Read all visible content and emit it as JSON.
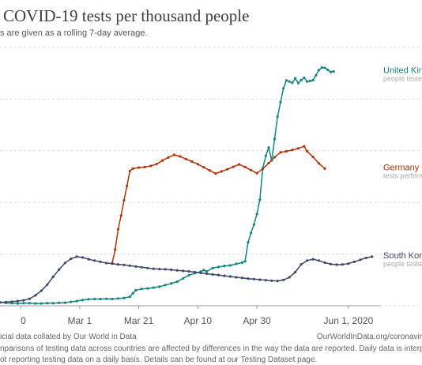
{
  "header": {
    "title": "COVID-19 tests per thousand people",
    "subtitle": "s are given as a rolling 7-day average."
  },
  "footer": {
    "source_left": "icial data collated by Our World in Data",
    "source_right": "OurWorldInData.org/coronavir",
    "note_line1": "nparisons of testing data across countries are affected by differences in the way the data are reported. Daily data is interpolat",
    "note_line2": "ot reporting testing data on a daily basis. Details can be found at our Testing Dataset page."
  },
  "chart_data": {
    "type": "line",
    "title": "COVID-19 tests per thousand people",
    "x_tick_labels": [
      "0",
      "Mar 1",
      "Mar 21",
      "Apr 10",
      "Apr 30",
      "Jun 1, 2020"
    ],
    "x_tick_days": [
      0,
      20,
      40,
      60,
      80,
      111
    ],
    "x_range_days": [
      -7,
      122
    ],
    "y_range_relative": [
      0,
      1
    ],
    "grid": "horizontal dashed",
    "legend_position": "right",
    "series": [
      {
        "name": "United Kin",
        "subtitle": "people teste",
        "color": "#10877f",
        "points": [
          [
            -7,
            0.013
          ],
          [
            -5,
            0.011
          ],
          [
            -3,
            0.01
          ],
          [
            -1,
            0.009
          ],
          [
            1,
            0.01
          ],
          [
            3,
            0.01
          ],
          [
            5,
            0.009
          ],
          [
            7,
            0.009
          ],
          [
            9,
            0.01
          ],
          [
            11,
            0.01
          ],
          [
            13,
            0.011
          ],
          [
            15,
            0.012
          ],
          [
            17,
            0.015
          ],
          [
            19,
            0.018
          ],
          [
            21,
            0.022
          ],
          [
            23,
            0.025
          ],
          [
            25,
            0.026
          ],
          [
            27,
            0.026
          ],
          [
            29,
            0.027
          ],
          [
            31,
            0.026
          ],
          [
            33,
            0.028
          ],
          [
            35,
            0.03
          ],
          [
            37,
            0.035
          ],
          [
            38,
            0.048
          ],
          [
            39,
            0.06
          ],
          [
            41,
            0.065
          ],
          [
            43,
            0.067
          ],
          [
            45,
            0.07
          ],
          [
            47,
            0.074
          ],
          [
            49,
            0.08
          ],
          [
            51,
            0.086
          ],
          [
            53,
            0.093
          ],
          [
            55,
            0.106
          ],
          [
            57,
            0.118
          ],
          [
            59,
            0.126
          ],
          [
            61,
            0.132
          ],
          [
            62,
            0.138
          ],
          [
            63,
            0.133
          ],
          [
            65,
            0.146
          ],
          [
            67,
            0.15
          ],
          [
            69,
            0.154
          ],
          [
            71,
            0.156
          ],
          [
            73,
            0.162
          ],
          [
            75,
            0.167
          ],
          [
            76,
            0.172
          ],
          [
            77,
            0.245
          ],
          [
            78,
            0.282
          ],
          [
            79,
            0.314
          ],
          [
            80,
            0.355
          ],
          [
            81,
            0.41
          ],
          [
            82,
            0.532
          ],
          [
            83,
            0.58
          ],
          [
            84,
            0.612
          ],
          [
            85,
            0.562
          ],
          [
            86,
            0.646
          ],
          [
            87,
            0.732
          ],
          [
            88,
            0.788
          ],
          [
            89,
            0.842
          ],
          [
            90,
            0.872
          ],
          [
            91,
            0.868
          ],
          [
            92,
            0.863
          ],
          [
            93,
            0.88
          ],
          [
            94,
            0.862
          ],
          [
            95,
            0.873
          ],
          [
            96,
            0.883
          ],
          [
            97,
            0.868
          ],
          [
            98,
            0.87
          ],
          [
            99,
            0.873
          ],
          [
            100,
            0.892
          ],
          [
            101,
            0.912
          ],
          [
            102,
            0.922
          ],
          [
            103,
            0.921
          ],
          [
            104,
            0.913
          ],
          [
            105,
            0.905
          ],
          [
            106,
            0.907
          ]
        ]
      },
      {
        "name": "Germany",
        "subtitle": "tests perform",
        "color": "#b13507",
        "points": [
          [
            31,
            0.165
          ],
          [
            32,
            0.217
          ],
          [
            33,
            0.296
          ],
          [
            34,
            0.349
          ],
          [
            35,
            0.408
          ],
          [
            36,
            0.464
          ],
          [
            37,
            0.522
          ],
          [
            38,
            0.531
          ],
          [
            40,
            0.535
          ],
          [
            42,
            0.537
          ],
          [
            44,
            0.541
          ],
          [
            46,
            0.548
          ],
          [
            48,
            0.562
          ],
          [
            50,
            0.574
          ],
          [
            52,
            0.584
          ],
          [
            54,
            0.578
          ],
          [
            56,
            0.568
          ],
          [
            58,
            0.558
          ],
          [
            60,
            0.548
          ],
          [
            62,
            0.536
          ],
          [
            64,
            0.524
          ],
          [
            66,
            0.512
          ],
          [
            68,
            0.52
          ],
          [
            70,
            0.528
          ],
          [
            72,
            0.538
          ],
          [
            74,
            0.547
          ],
          [
            76,
            0.537
          ],
          [
            78,
            0.525
          ],
          [
            80,
            0.513
          ],
          [
            82,
            0.53
          ],
          [
            84,
            0.552
          ],
          [
            86,
            0.575
          ],
          [
            88,
            0.594
          ],
          [
            90,
            0.598
          ],
          [
            92,
            0.603
          ],
          [
            94,
            0.609
          ],
          [
            96,
            0.617
          ],
          [
            97,
            0.598
          ],
          [
            99,
            0.576
          ],
          [
            101,
            0.551
          ],
          [
            103,
            0.531
          ]
        ]
      },
      {
        "name": "South Kore",
        "subtitle": "people teste",
        "color": "#40476a",
        "points": [
          [
            -7,
            0.013
          ],
          [
            -5,
            0.014
          ],
          [
            -3,
            0.016
          ],
          [
            -1,
            0.018
          ],
          [
            1,
            0.021
          ],
          [
            3,
            0.027
          ],
          [
            5,
            0.04
          ],
          [
            7,
            0.058
          ],
          [
            9,
            0.082
          ],
          [
            11,
            0.112
          ],
          [
            13,
            0.14
          ],
          [
            15,
            0.165
          ],
          [
            17,
            0.182
          ],
          [
            19,
            0.19
          ],
          [
            21,
            0.187
          ],
          [
            23,
            0.18
          ],
          [
            25,
            0.175
          ],
          [
            27,
            0.17
          ],
          [
            29,
            0.165
          ],
          [
            31,
            0.163
          ],
          [
            33,
            0.16
          ],
          [
            35,
            0.158
          ],
          [
            37,
            0.155
          ],
          [
            39,
            0.152
          ],
          [
            41,
            0.149
          ],
          [
            43,
            0.146
          ],
          [
            45,
            0.143
          ],
          [
            47,
            0.142
          ],
          [
            49,
            0.141
          ],
          [
            51,
            0.139
          ],
          [
            53,
            0.137
          ],
          [
            55,
            0.135
          ],
          [
            57,
            0.133
          ],
          [
            59,
            0.13
          ],
          [
            61,
            0.127
          ],
          [
            63,
            0.124
          ],
          [
            65,
            0.121
          ],
          [
            67,
            0.119
          ],
          [
            69,
            0.116
          ],
          [
            71,
            0.113
          ],
          [
            73,
            0.11
          ],
          [
            75,
            0.108
          ],
          [
            77,
            0.105
          ],
          [
            79,
            0.103
          ],
          [
            81,
            0.101
          ],
          [
            83,
            0.099
          ],
          [
            85,
            0.097
          ],
          [
            87,
            0.096
          ],
          [
            89,
            0.1
          ],
          [
            91,
            0.11
          ],
          [
            93,
            0.13
          ],
          [
            95,
            0.16
          ],
          [
            97,
            0.175
          ],
          [
            99,
            0.18
          ],
          [
            101,
            0.175
          ],
          [
            103,
            0.167
          ],
          [
            105,
            0.161
          ],
          [
            107,
            0.159
          ],
          [
            109,
            0.16
          ],
          [
            111,
            0.163
          ],
          [
            113,
            0.17
          ],
          [
            115,
            0.178
          ],
          [
            117,
            0.185
          ],
          [
            119,
            0.19
          ]
        ]
      }
    ]
  }
}
